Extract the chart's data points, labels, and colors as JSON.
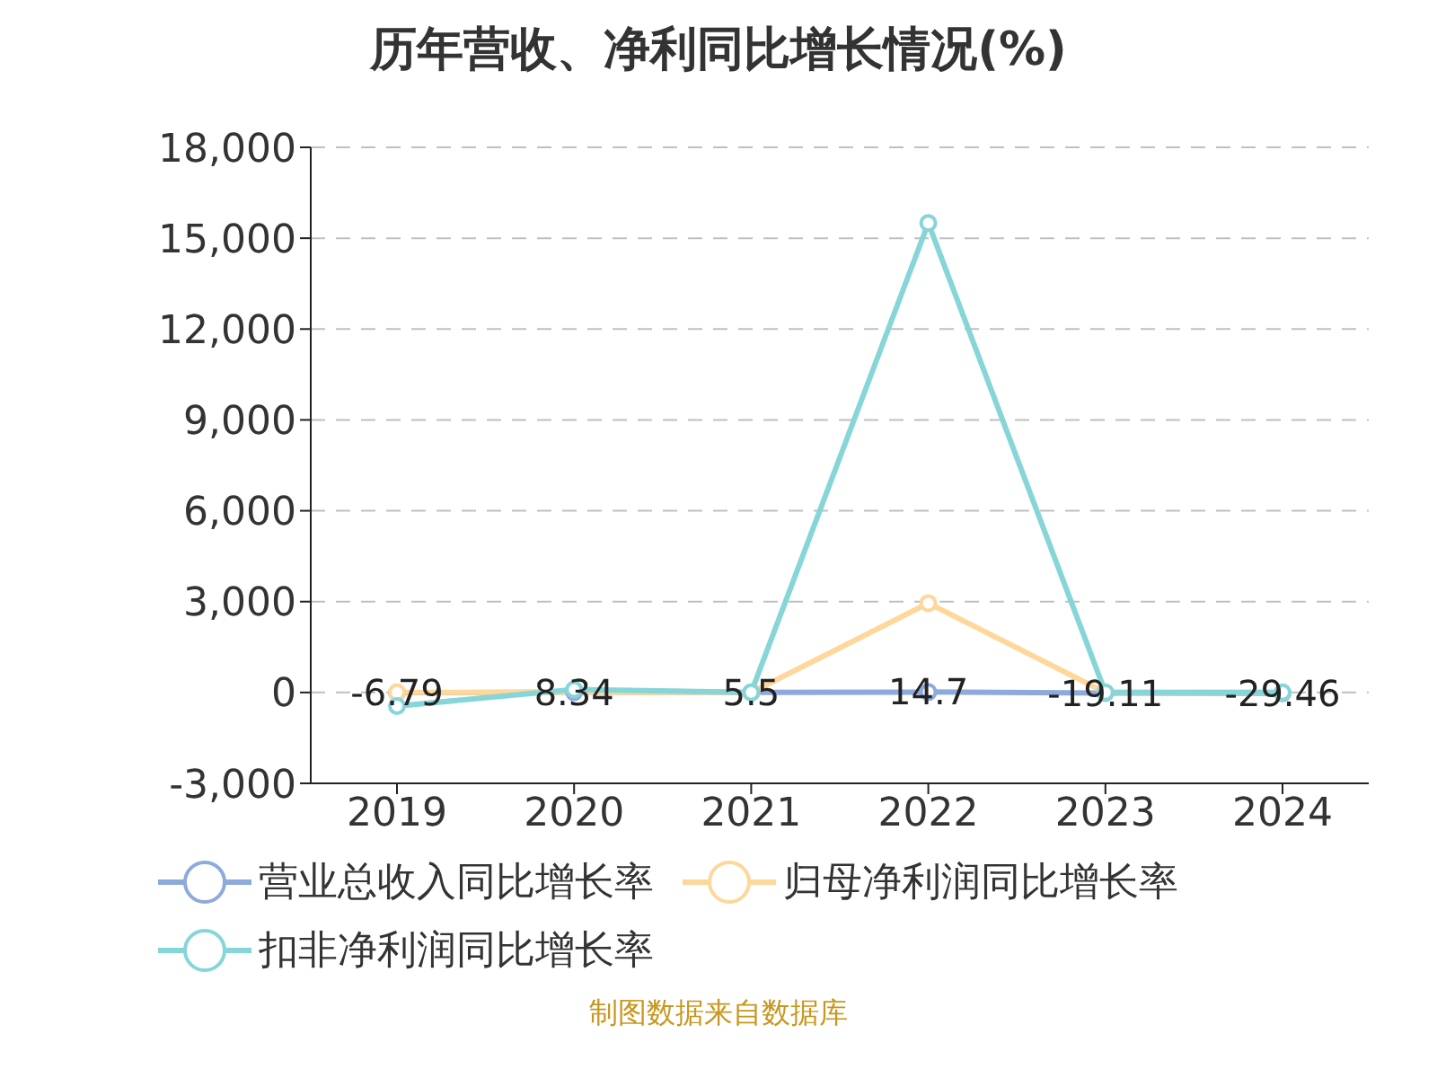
{
  "chart_data": {
    "type": "line",
    "title": "历年营收、净利同比增长情况(%)",
    "categories": [
      "2019",
      "2020",
      "2021",
      "2022",
      "2023",
      "2024"
    ],
    "series": [
      {
        "name": "营业总收入同比增长率",
        "color": "#8eaadc",
        "values": [
          -6.79,
          8.34,
          5.5,
          14.7,
          -19.11,
          -29.46
        ],
        "value_labels": [
          "-6.79",
          "8.34",
          "5.5",
          "14.7",
          "-19.11",
          "-29.46"
        ]
      },
      {
        "name": "归母净利润同比增长率",
        "color": "#fed799",
        "values": [
          0,
          null,
          0,
          2950,
          0,
          0
        ]
      },
      {
        "name": "扣非净利润同比增长率",
        "color": "#86d5d8",
        "values": [
          -450,
          100,
          0,
          15500,
          0,
          0
        ]
      }
    ],
    "ylim": [
      -3000,
      18000
    ],
    "yticks": [
      {
        "value": -3000,
        "label": "-3,000"
      },
      0,
      {
        "value": 3000,
        "label": "3,000"
      },
      {
        "value": 6000,
        "label": "6,000"
      },
      {
        "value": 9000,
        "label": "9,000"
      },
      {
        "value": 12000,
        "label": "12,000"
      },
      {
        "value": 15000,
        "label": "15,000"
      },
      {
        "value": 18000,
        "label": "18,000"
      }
    ],
    "grid": "y",
    "legend": "bottom",
    "marker": "circle",
    "line_style": "solid",
    "annotations": [
      "制图数据来自数据库"
    ]
  }
}
